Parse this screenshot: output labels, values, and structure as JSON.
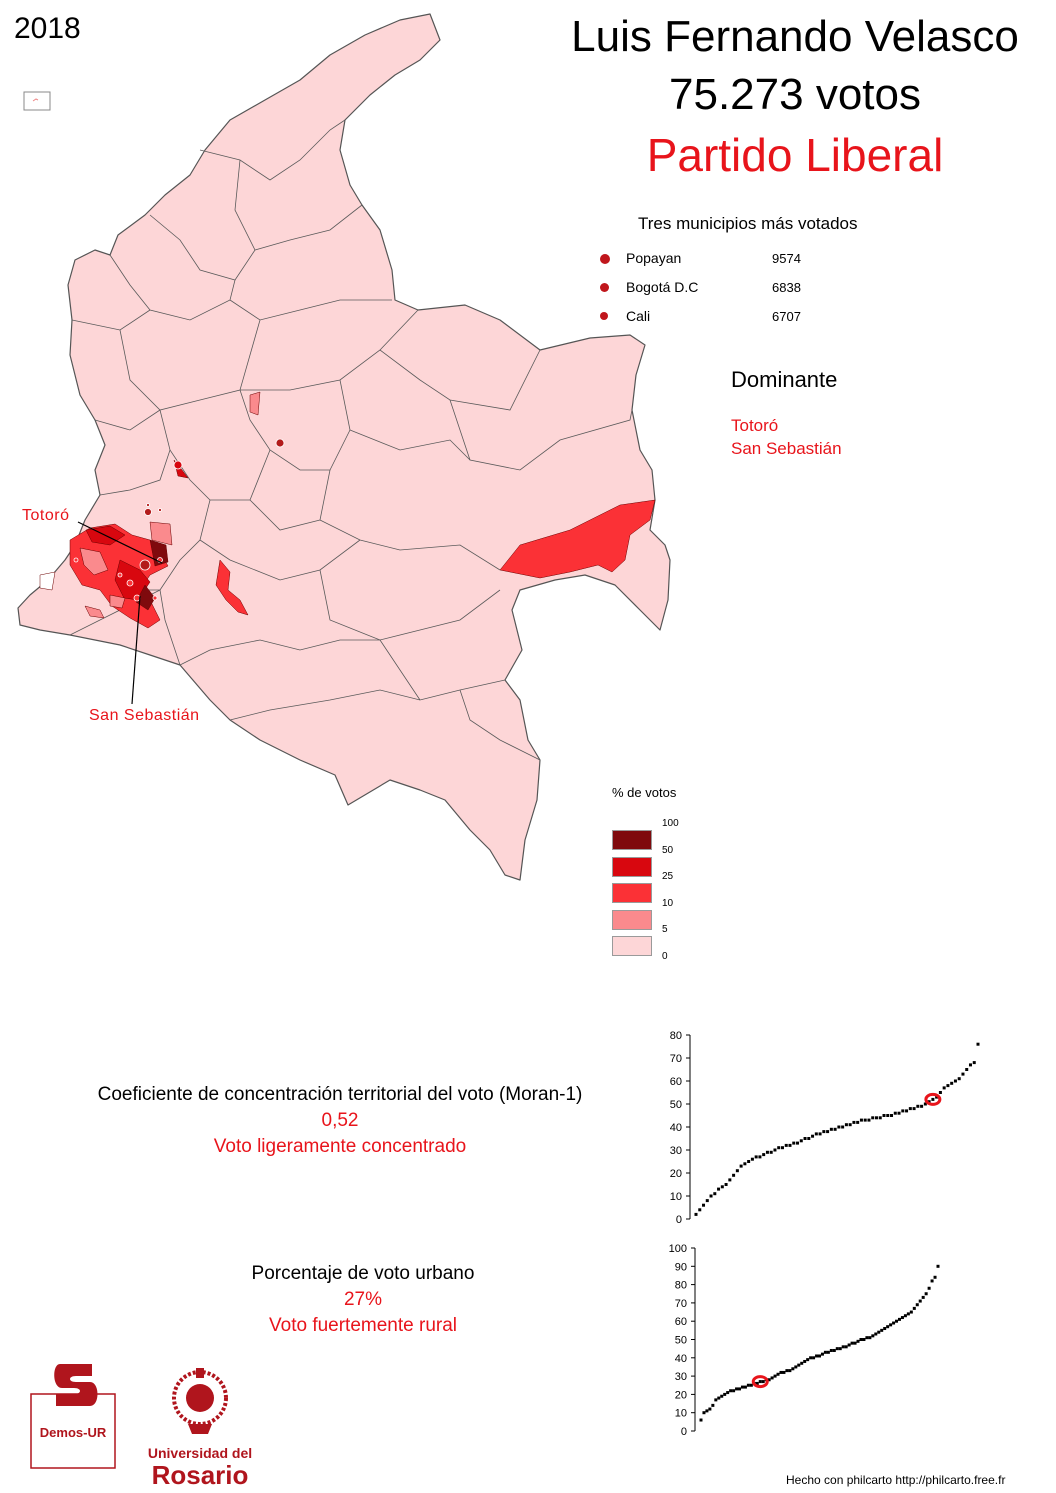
{
  "year": "2018",
  "title": {
    "candidate": "Luis Fernando Velasco",
    "votes": "75.273 votos",
    "party": "Partido Liberal"
  },
  "top_municipalities": {
    "title": "Tres municipios más votados",
    "items": [
      {
        "name": "Popayan",
        "value": "9574"
      },
      {
        "name": "Bogotá D.C",
        "value": "6838"
      },
      {
        "name": "Cali",
        "value": "6707"
      }
    ]
  },
  "dominant": {
    "title": "Dominante",
    "items": [
      "Totoró",
      "San Sebastián"
    ]
  },
  "map_labels": {
    "totoro": "Totoró",
    "san_sebastian": "San Sebastián"
  },
  "legend": {
    "title": "% de votos",
    "breaks": [
      "100",
      "50",
      "25",
      "10",
      "5",
      "0"
    ],
    "colors": [
      "#7f0a0d",
      "#d8070f",
      "#fb3136",
      "#fa8a8d",
      "#fdd6d7"
    ]
  },
  "moran": {
    "label": "Coeficiente de concentración territorial del voto (Moran-1)",
    "value": "0,52",
    "description": "Voto ligeramente concentrado"
  },
  "urban": {
    "label": "Porcentaje de voto urbano",
    "value": "27%",
    "description": "Voto fuertemente rural"
  },
  "logos": {
    "demos": "Demos-UR",
    "ur_line1": "Universidad del",
    "ur_line2": "Rosario"
  },
  "credit": "Hecho con philcarto http://philcarto.free.fr",
  "chart_data": [
    {
      "type": "scatter",
      "title": "",
      "xlabel": "",
      "ylabel": "",
      "ylim": [
        0,
        80
      ],
      "y_ticks": [
        "0",
        "10",
        "20",
        "30",
        "40",
        "50",
        "60",
        "70",
        "80"
      ],
      "series": [
        {
          "values": [
            2,
            4,
            6,
            8,
            10,
            11,
            13,
            14,
            15,
            17,
            19,
            21,
            23,
            24,
            25,
            26,
            27,
            27,
            28,
            29,
            29,
            30,
            31,
            31,
            32,
            32,
            33,
            33,
            34,
            35,
            35,
            36,
            37,
            37,
            38,
            38,
            39,
            39,
            40,
            40,
            41,
            41,
            42,
            42,
            43,
            43,
            43,
            44,
            44,
            44,
            45,
            45,
            45,
            46,
            46,
            47,
            47,
            48,
            48,
            49,
            49,
            50,
            51,
            52,
            53,
            55,
            57,
            58,
            59,
            60,
            61,
            63,
            65,
            67,
            68,
            76
          ]
        }
      ],
      "highlight_value": 52
    },
    {
      "type": "scatter",
      "title": "",
      "xlabel": "",
      "ylabel": "",
      "ylim": [
        0,
        100
      ],
      "y_ticks": [
        "0",
        "10",
        "20",
        "30",
        "40",
        "50",
        "60",
        "70",
        "80",
        "90",
        "100"
      ],
      "series": [
        {
          "values": [
            6,
            10,
            11,
            12,
            14,
            17,
            18,
            19,
            20,
            21,
            22,
            22,
            23,
            23,
            24,
            24,
            25,
            25,
            26,
            26,
            27,
            27,
            28,
            28,
            29,
            30,
            31,
            32,
            32,
            33,
            33,
            34,
            35,
            36,
            37,
            38,
            39,
            40,
            40,
            41,
            41,
            42,
            43,
            43,
            44,
            44,
            45,
            45,
            46,
            46,
            47,
            48,
            48,
            49,
            50,
            50,
            51,
            51,
            52,
            53,
            54,
            55,
            56,
            57,
            58,
            59,
            60,
            61,
            62,
            63,
            64,
            65,
            67,
            69,
            71,
            73,
            75,
            78,
            82,
            84,
            90
          ]
        }
      ],
      "highlight_value": 27
    }
  ]
}
